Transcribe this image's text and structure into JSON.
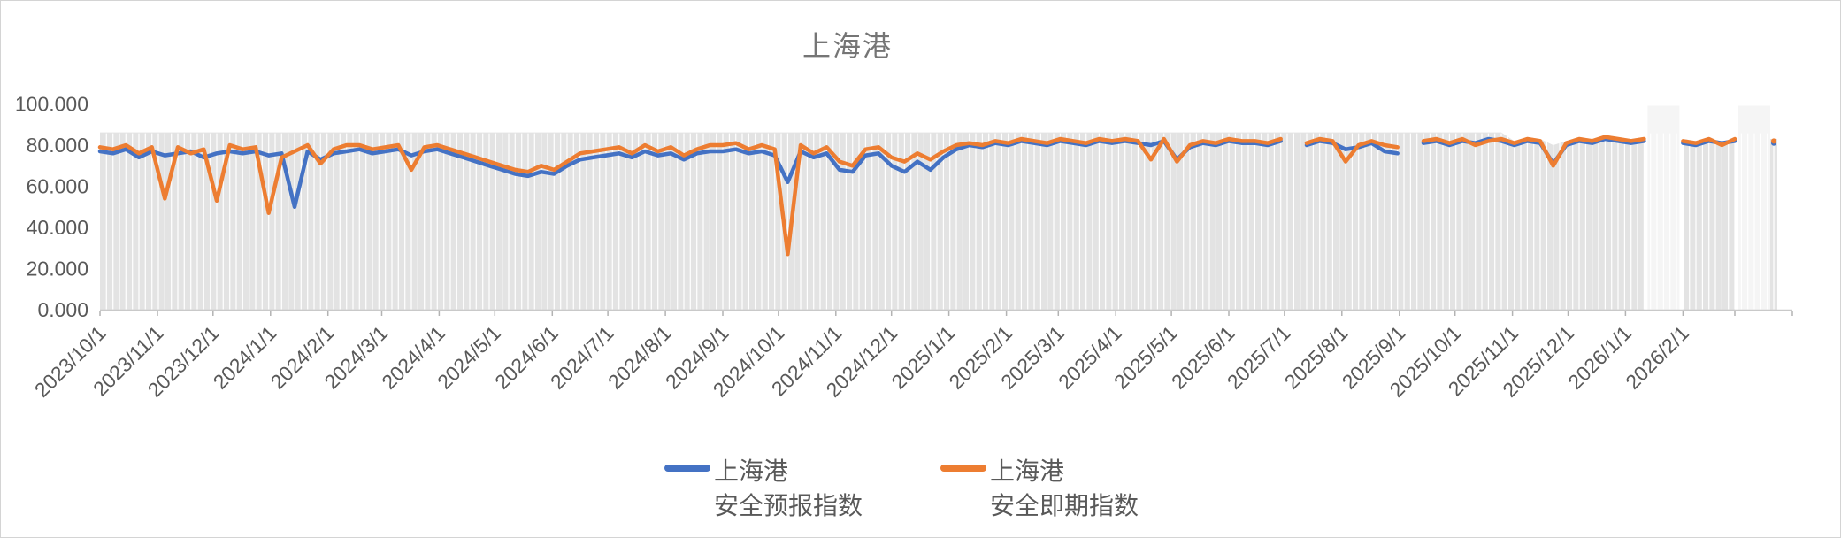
{
  "chart_data": {
    "type": "line",
    "title": "上海港",
    "title_color": "#757575",
    "x_start_date": "2023/10/1",
    "x_end_date": "2026/4/1",
    "point_interval_days": 7,
    "x_tick_labels": [
      "2023/10/1",
      "2023/11/1",
      "2023/12/1",
      "2024/1/1",
      "2024/2/1",
      "2024/3/1",
      "2024/4/1",
      "2024/5/1",
      "2024/6/1",
      "2024/7/1",
      "2024/8/1",
      "2024/9/1",
      "2024/10/1",
      "2024/11/1",
      "2024/12/1",
      "2025/1/1",
      "2025/2/1",
      "2025/3/1",
      "2025/4/1",
      "2025/5/1",
      "2025/6/1",
      "2025/7/1",
      "2025/8/1",
      "2025/9/1",
      "2025/10/1",
      "2025/11/1",
      "2025/12/1",
      "2026/1/1",
      "2026/2/1"
    ],
    "y_tick_labels": [
      "100.000",
      "80.000",
      "60.000",
      "40.000",
      "20.000",
      "0.000"
    ],
    "y_tick_values": [
      100,
      80,
      60,
      40,
      20,
      0
    ],
    "ylim": [
      0,
      100
    ],
    "axis_label_color": "#595959",
    "plot": {
      "coverage_fill": "#e3e3e3",
      "gap_fill": "#f5f5f5",
      "gridline_color": "#ffffff",
      "gridline_interval_days": 3.5,
      "axis_line_color": "#c9c9c9",
      "tick_color": "#b3b3b3"
    },
    "band": {
      "comment": "light-gray data-coverage area under the curves; flat top ~86 until late 2025, then follows the lines; null = data gap",
      "level": 86.2,
      "level_until_index": 108,
      "tail_values": [
        82,
        84,
        83,
        80,
        82,
        84,
        83,
        85,
        84,
        83,
        84,
        null,
        null,
        83,
        82,
        84,
        81.5,
        84,
        null,
        null,
        83
      ]
    },
    "series": [
      {
        "name": "上海港 安全预报指数",
        "color": "#4472C4",
        "values": [
          77,
          76,
          78,
          74,
          77,
          75,
          76,
          77,
          74,
          76,
          77,
          76,
          77,
          75,
          76,
          50,
          77,
          73,
          76,
          77,
          78,
          76,
          77,
          78,
          75,
          77,
          78,
          76,
          74,
          72,
          70,
          68,
          66,
          65,
          67,
          66,
          70,
          73,
          74,
          75,
          76,
          74,
          77,
          75,
          76,
          73,
          76,
          77,
          77,
          78,
          76,
          77,
          75,
          62,
          77,
          74,
          76,
          68,
          67,
          75,
          76,
          70,
          67,
          72,
          68,
          74,
          78,
          80,
          79,
          81,
          80,
          82,
          81,
          80,
          82,
          81,
          80,
          82,
          81,
          82,
          81,
          80,
          82,
          73,
          79,
          81,
          80,
          82,
          81,
          81,
          80,
          82,
          null,
          80,
          82,
          81,
          78,
          79,
          81,
          77,
          76,
          null,
          81,
          82,
          80,
          82,
          81,
          83,
          82,
          80,
          82,
          81,
          71,
          80,
          82,
          81,
          83,
          82,
          81,
          82,
          null,
          null,
          81,
          80,
          82,
          81,
          82,
          null,
          null,
          81
        ]
      },
      {
        "name": "上海港 安全即期指数",
        "color": "#ED7D31",
        "values": [
          79,
          78,
          80,
          76,
          79,
          54,
          79,
          76,
          78,
          53,
          80,
          78,
          79,
          47,
          74,
          77,
          80,
          71,
          78,
          80,
          80,
          78,
          79,
          80,
          68,
          79,
          80,
          78,
          76,
          74,
          72,
          70,
          68,
          67,
          70,
          68,
          72,
          76,
          77,
          78,
          79,
          76,
          80,
          77,
          79,
          75,
          78,
          80,
          80,
          81,
          78,
          80,
          78,
          27,
          80,
          76,
          79,
          72,
          70,
          78,
          79,
          74,
          72,
          76,
          73,
          77,
          80,
          81,
          80,
          82,
          81,
          83,
          82,
          81,
          83,
          82,
          81,
          83,
          82,
          83,
          82,
          73,
          83,
          72,
          80,
          82,
          81,
          83,
          82,
          82,
          81,
          83,
          null,
          81,
          83,
          82,
          72,
          80,
          82,
          80,
          79,
          null,
          82,
          83,
          81,
          83,
          80,
          82,
          83,
          81,
          83,
          82,
          70,
          81,
          83,
          82,
          84,
          83,
          82,
          83,
          null,
          null,
          82,
          81,
          83,
          80,
          83,
          null,
          null,
          82
        ]
      }
    ],
    "legend": [
      {
        "line1": "上海港",
        "line2": "安全预报指数",
        "color": "#4472C4"
      },
      {
        "line1": "上海港",
        "line2": "安全即期指数",
        "color": "#ED7D31"
      }
    ],
    "legend_position": "bottom"
  }
}
